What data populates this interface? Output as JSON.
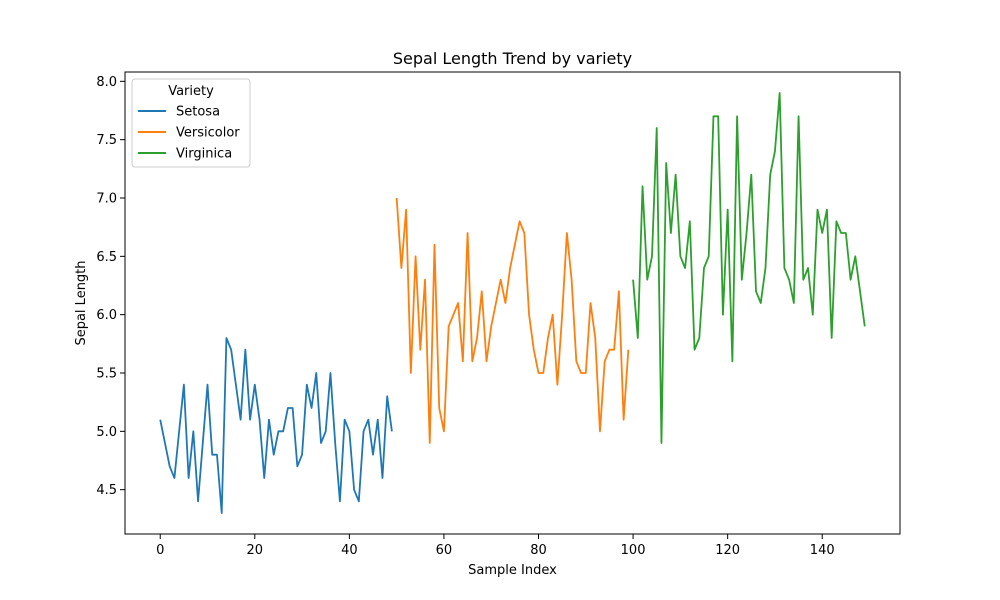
{
  "chart_data": {
    "type": "line",
    "title": "Sepal Length Trend by variety",
    "xlabel": "Sample Index",
    "ylabel": "Sepal Length",
    "xlim": [
      -7.45,
      156.45
    ],
    "ylim": [
      4.12,
      8.08
    ],
    "xticks": [
      0,
      20,
      40,
      60,
      80,
      100,
      120,
      140
    ],
    "yticks": [
      4.5,
      5.0,
      5.5,
      6.0,
      6.5,
      7.0,
      7.5,
      8.0
    ],
    "xtick_labels": [
      "0",
      "20",
      "40",
      "60",
      "80",
      "100",
      "120",
      "140"
    ],
    "ytick_labels": [
      "4.5",
      "5.0",
      "5.5",
      "6.0",
      "6.5",
      "7.0",
      "7.5",
      "8.0"
    ],
    "grid": false,
    "legend": {
      "title": "Variety",
      "placement": "top-left"
    },
    "series": [
      {
        "name": "Setosa",
        "color": "#1f77b4",
        "x_start": 0,
        "values": [
          5.1,
          4.9,
          4.7,
          4.6,
          5.0,
          5.4,
          4.6,
          5.0,
          4.4,
          4.9,
          5.4,
          4.8,
          4.8,
          4.3,
          5.8,
          5.7,
          5.4,
          5.1,
          5.7,
          5.1,
          5.4,
          5.1,
          4.6,
          5.1,
          4.8,
          5.0,
          5.0,
          5.2,
          5.2,
          4.7,
          4.8,
          5.4,
          5.2,
          5.5,
          4.9,
          5.0,
          5.5,
          4.9,
          4.4,
          5.1,
          5.0,
          4.5,
          4.4,
          5.0,
          5.1,
          4.8,
          5.1,
          4.6,
          5.3,
          5.0
        ]
      },
      {
        "name": "Versicolor",
        "color": "#ff7f0e",
        "x_start": 50,
        "values": [
          7.0,
          6.4,
          6.9,
          5.5,
          6.5,
          5.7,
          6.3,
          4.9,
          6.6,
          5.2,
          5.0,
          5.9,
          6.0,
          6.1,
          5.6,
          6.7,
          5.6,
          5.8,
          6.2,
          5.6,
          5.9,
          6.1,
          6.3,
          6.1,
          6.4,
          6.6,
          6.8,
          6.7,
          6.0,
          5.7,
          5.5,
          5.5,
          5.8,
          6.0,
          5.4,
          6.0,
          6.7,
          6.3,
          5.6,
          5.5,
          5.5,
          6.1,
          5.8,
          5.0,
          5.6,
          5.7,
          5.7,
          6.2,
          5.1,
          5.7
        ]
      },
      {
        "name": "Virginica",
        "color": "#2ca02c",
        "x_start": 100,
        "values": [
          6.3,
          5.8,
          7.1,
          6.3,
          6.5,
          7.6,
          4.9,
          7.3,
          6.7,
          7.2,
          6.5,
          6.4,
          6.8,
          5.7,
          5.8,
          6.4,
          6.5,
          7.7,
          7.7,
          6.0,
          6.9,
          5.6,
          7.7,
          6.3,
          6.7,
          7.2,
          6.2,
          6.1,
          6.4,
          7.2,
          7.4,
          7.9,
          6.4,
          6.3,
          6.1,
          7.7,
          6.3,
          6.4,
          6.0,
          6.9,
          6.7,
          6.9,
          5.8,
          6.8,
          6.7,
          6.7,
          6.3,
          6.5,
          6.2,
          5.9
        ]
      }
    ]
  }
}
